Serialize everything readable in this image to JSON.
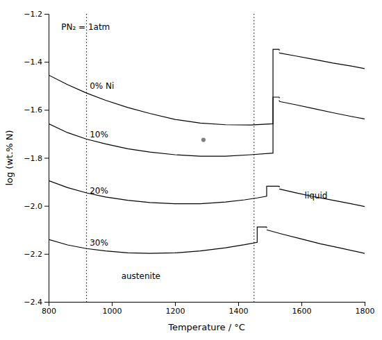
{
  "chart_data": {
    "type": "line",
    "xlabel": "Temperature / °C",
    "ylabel": "log (wt.% N)",
    "xlim": [
      800,
      1800
    ],
    "ylim": [
      -2.4,
      -1.2
    ],
    "xticks": [
      800,
      1000,
      1200,
      1400,
      1600,
      1800
    ],
    "yticks": [
      {
        "value": -2.4,
        "label": "−2.4"
      },
      {
        "value": -2.2,
        "label": "−2.2"
      },
      {
        "value": -2.0,
        "label": "−2.0"
      },
      {
        "value": -1.8,
        "label": "−1.8"
      },
      {
        "value": -1.6,
        "label": "−1.6"
      },
      {
        "value": -1.4,
        "label": "−1.4"
      },
      {
        "value": -1.2,
        "label": "−1.2"
      }
    ],
    "grid": false,
    "series": [
      {
        "color": "black",
        "line_style": "solid",
        "x": [
          800,
          860,
          920,
          980,
          1050,
          1120,
          1200,
          1280,
          1360,
          1440,
          1510,
          1510,
          1530
        ],
        "values": [
          -1.455,
          -1.495,
          -1.53,
          -1.56,
          -1.59,
          -1.615,
          -1.64,
          -1.655,
          -1.662,
          -1.663,
          -1.658,
          -1.348,
          -1.348
        ]
      },
      {
        "color": "black",
        "line_style": "dotted",
        "x": [
          1530,
          1530
        ],
        "values": [
          -1.348,
          -1.363
        ]
      },
      {
        "color": "black",
        "line_style": "solid",
        "x": [
          1530,
          1580,
          1640,
          1700,
          1760,
          1800
        ],
        "values": [
          -1.363,
          -1.375,
          -1.39,
          -1.405,
          -1.418,
          -1.428
        ]
      },
      {
        "color": "black",
        "line_style": "solid",
        "x": [
          800,
          860,
          920,
          980,
          1050,
          1120,
          1200,
          1280,
          1360,
          1440,
          1510,
          1510,
          1530
        ],
        "values": [
          -1.658,
          -1.695,
          -1.722,
          -1.742,
          -1.762,
          -1.776,
          -1.787,
          -1.793,
          -1.793,
          -1.787,
          -1.78,
          -1.547,
          -1.547
        ]
      },
      {
        "color": "black",
        "line_style": "dotted",
        "x": [
          1530,
          1530
        ],
        "values": [
          -1.547,
          -1.565
        ]
      },
      {
        "color": "black",
        "line_style": "solid",
        "x": [
          1530,
          1580,
          1640,
          1700,
          1760,
          1800
        ],
        "values": [
          -1.565,
          -1.578,
          -1.595,
          -1.612,
          -1.628,
          -1.638
        ]
      },
      {
        "color": "black",
        "line_style": "solid",
        "x": [
          800,
          860,
          920,
          980,
          1050,
          1120,
          1200,
          1280,
          1360,
          1420,
          1460,
          1490,
          1490,
          1530
        ],
        "values": [
          -1.895,
          -1.924,
          -1.946,
          -1.963,
          -1.977,
          -1.986,
          -1.991,
          -1.991,
          -1.984,
          -1.975,
          -1.967,
          -1.96,
          -1.918,
          -1.918
        ]
      },
      {
        "color": "black",
        "line_style": "dotted",
        "x": [
          1530,
          1530
        ],
        "values": [
          -1.918,
          -1.93
        ]
      },
      {
        "color": "black",
        "line_style": "solid",
        "x": [
          1530,
          1580,
          1640,
          1700,
          1760,
          1800
        ],
        "values": [
          -1.93,
          -1.945,
          -1.962,
          -1.977,
          -1.992,
          -2.003
        ]
      },
      {
        "color": "black",
        "line_style": "solid",
        "x": [
          800,
          860,
          920,
          980,
          1050,
          1120,
          1200,
          1280,
          1360,
          1420,
          1460,
          1460,
          1490
        ],
        "values": [
          -2.14,
          -2.163,
          -2.178,
          -2.188,
          -2.196,
          -2.198,
          -2.196,
          -2.188,
          -2.175,
          -2.162,
          -2.152,
          -2.088,
          -2.088
        ]
      },
      {
        "color": "black",
        "line_style": "dotted",
        "x": [
          1490,
          1490
        ],
        "values": [
          -2.088,
          -2.1
        ]
      },
      {
        "color": "black",
        "line_style": "solid",
        "x": [
          1490,
          1540,
          1600,
          1660,
          1720,
          1800
        ],
        "values": [
          -2.1,
          -2.118,
          -2.138,
          -2.158,
          -2.175,
          -2.198
        ]
      },
      {
        "type": "scatter",
        "color": "gray",
        "marker": "circle",
        "x": [
          1290
        ],
        "values": [
          -1.725
        ]
      }
    ],
    "vertical_lines": [
      {
        "x": 920,
        "color": "black",
        "line_style": "dotted"
      },
      {
        "x": 1450,
        "color": "black",
        "line_style": "dotted"
      }
    ],
    "annotations": [
      {
        "text": "0% Ni",
        "x": 930,
        "y": -1.503
      },
      {
        "text": "10%",
        "x": 930,
        "y": -1.706
      },
      {
        "text": "20%",
        "x": 930,
        "y": -1.939
      },
      {
        "text": "30%",
        "x": 930,
        "y": -2.157
      },
      {
        "text": "liquid",
        "x": 1610,
        "y": -1.96
      },
      {
        "text": "austenite",
        "x": 1030,
        "y": -2.295
      },
      {
        "text": "PN₂ = 1atm",
        "x": 840,
        "y": -1.255
      }
    ]
  }
}
